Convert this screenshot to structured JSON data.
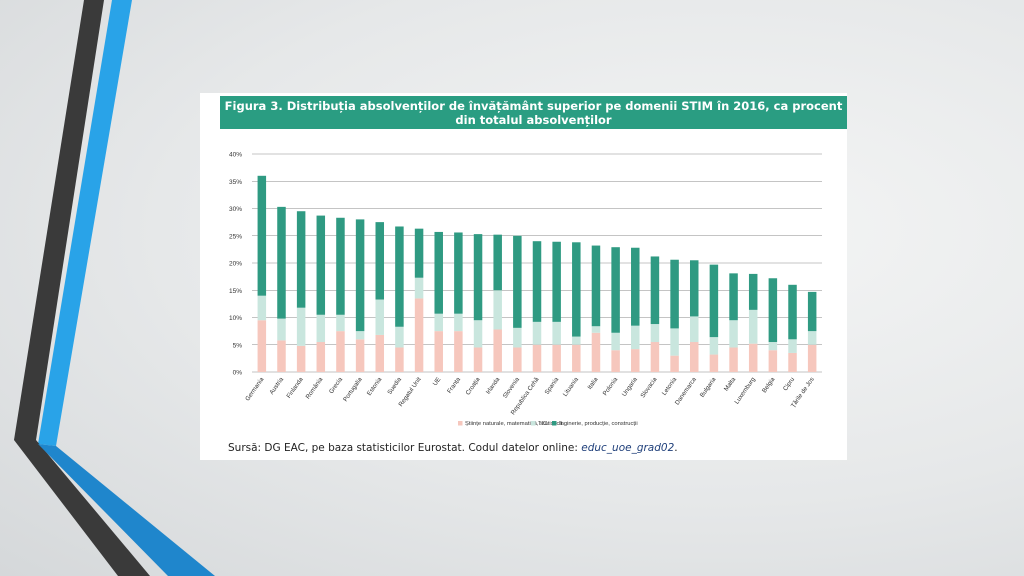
{
  "colors": {
    "decor_dark": "#3a3a3a",
    "decor_blue": "#29a3e8",
    "title_bg": "#2a9d82",
    "stiinte": "#f6c7bd",
    "tic": "#c9e6de",
    "inginerie": "#2f9a82"
  },
  "figure": {
    "title": "Figura 3. Distribuția absolvenților de învățământ superior pe domenii STIM în 2016, ca procent din totalul absolvenților",
    "source_text": "Sursă: DG EAC, pe baza statisticilor Eurostat. Codul datelor online: ",
    "source_code": "educ_uoe_grad02",
    "source_end": "."
  },
  "chart_data": {
    "type": "bar",
    "stacked": true,
    "categories": [
      "Germania",
      "Austria",
      "Finlanda",
      "România",
      "Grecia",
      "Portugalia",
      "Estonia",
      "Suedia",
      "Regatul Unit",
      "UE",
      "Franța",
      "Croația",
      "Irlanda",
      "Slovenia",
      "Republica Cehă",
      "Spania",
      "Lituania",
      "Italia",
      "Polonia",
      "Ungaria",
      "Slovacia",
      "Letonia",
      "Danemarca",
      "Bulgaria",
      "Malta",
      "Luxemburg",
      "Belgia",
      "Cipru",
      "Țările de Jos"
    ],
    "series": [
      {
        "name": "Științe naturale, matematică, statistică",
        "values": [
          9.5,
          5.8,
          4.8,
          5.5,
          7.5,
          6.0,
          6.8,
          4.5,
          13.5,
          7.5,
          7.5,
          4.5,
          7.8,
          4.5,
          5.0,
          5.0,
          5.0,
          7.2,
          4.0,
          4.2,
          5.5,
          3.0,
          5.5,
          3.2,
          4.5,
          5.2,
          4.0,
          3.5,
          5.0
        ]
      },
      {
        "name": "TIC",
        "values": [
          4.5,
          4.0,
          7.0,
          5.0,
          3.0,
          1.5,
          6.5,
          3.8,
          3.8,
          3.2,
          3.2,
          5.0,
          7.2,
          3.6,
          4.2,
          4.2,
          1.5,
          1.2,
          3.2,
          4.3,
          3.3,
          5.0,
          4.7,
          3.2,
          5.0,
          6.2,
          1.5,
          2.5,
          2.5
        ]
      },
      {
        "name": "Inginerie, producție, construcții",
        "values": [
          22.0,
          20.5,
          17.7,
          18.2,
          17.8,
          20.5,
          14.2,
          18.4,
          9.0,
          15.0,
          14.9,
          15.8,
          10.2,
          16.9,
          14.8,
          14.7,
          17.3,
          14.8,
          15.7,
          14.3,
          12.4,
          12.6,
          10.3,
          13.3,
          8.6,
          6.6,
          11.7,
          10.0,
          7.2
        ]
      }
    ],
    "ylim": [
      0,
      40
    ],
    "yticks": [
      "0%",
      "5%",
      "10%",
      "15%",
      "20%",
      "25%",
      "30%",
      "35%",
      "40%"
    ],
    "grid": true,
    "legend_position": "bottom"
  }
}
